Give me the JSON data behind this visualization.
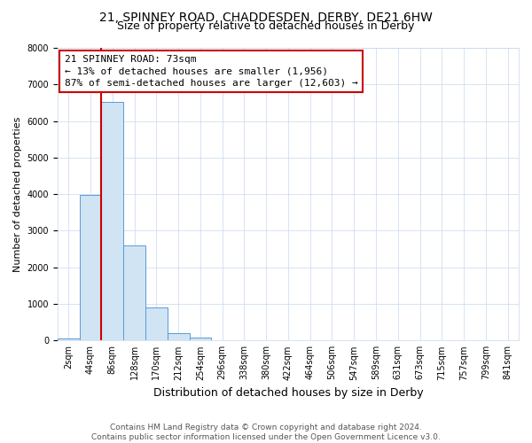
{
  "title1": "21, SPINNEY ROAD, CHADDESDEN, DERBY, DE21 6HW",
  "title2": "Size of property relative to detached houses in Derby",
  "xlabel": "Distribution of detached houses by size in Derby",
  "ylabel": "Number of detached properties",
  "footnote": "Contains HM Land Registry data © Crown copyright and database right 2024.\nContains public sector information licensed under the Open Government Licence v3.0.",
  "categories": [
    "2sqm",
    "44sqm",
    "86sqm",
    "128sqm",
    "170sqm",
    "212sqm",
    "254sqm",
    "296sqm",
    "338sqm",
    "380sqm",
    "422sqm",
    "464sqm",
    "506sqm",
    "547sqm",
    "589sqm",
    "631sqm",
    "673sqm",
    "715sqm",
    "757sqm",
    "799sqm",
    "841sqm"
  ],
  "values": [
    50,
    3990,
    6530,
    2600,
    900,
    190,
    90,
    0,
    0,
    0,
    0,
    0,
    0,
    0,
    0,
    0,
    0,
    0,
    0,
    0,
    0
  ],
  "bar_color": "#d0e4f4",
  "bar_edge_color": "#5b9bd5",
  "ylim": [
    0,
    8000
  ],
  "yticks": [
    0,
    1000,
    2000,
    3000,
    4000,
    5000,
    6000,
    7000,
    8000
  ],
  "red_line_index": 1.5,
  "annotation_text": "21 SPINNEY ROAD: 73sqm\n← 13% of detached houses are smaller (1,956)\n87% of semi-detached houses are larger (12,603) →",
  "annotation_box_color": "#ffffff",
  "annotation_box_edge": "#cc0000",
  "red_line_color": "#cc0000",
  "background_color": "#ffffff",
  "grid_color": "#c8d8ee",
  "title1_fontsize": 10,
  "title2_fontsize": 9,
  "xlabel_fontsize": 9,
  "ylabel_fontsize": 8,
  "tick_fontsize": 7,
  "annotation_fontsize": 8,
  "footnote_fontsize": 6.5
}
